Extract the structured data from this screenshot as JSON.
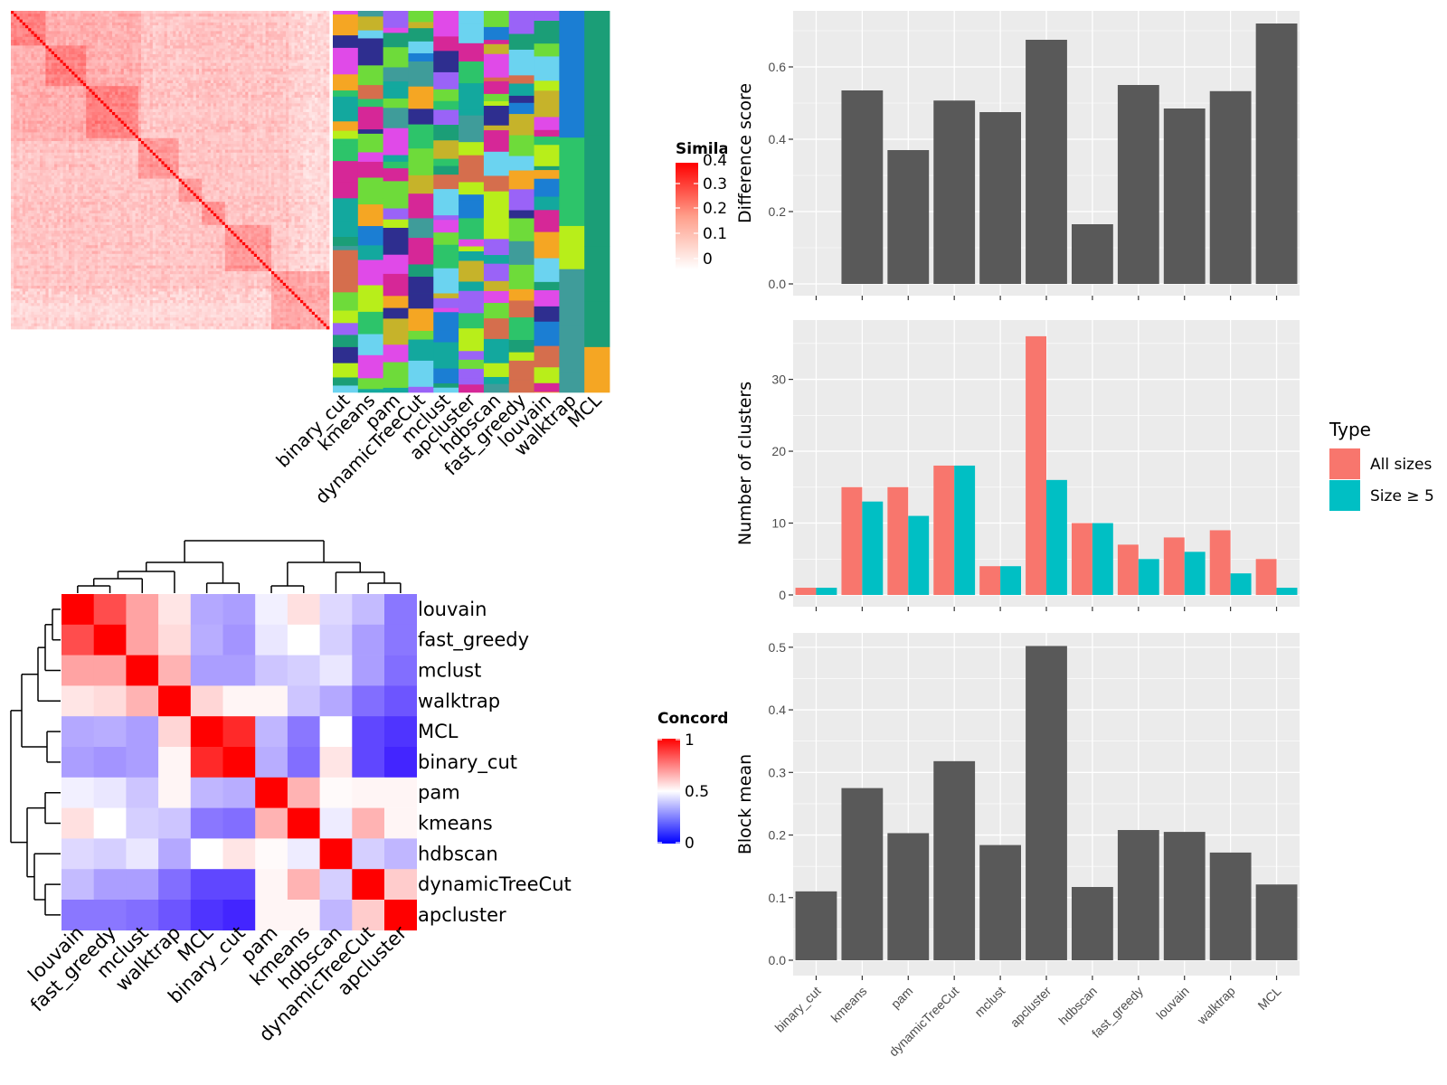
{
  "methods": [
    "binary_cut",
    "kmeans",
    "pam",
    "dynamicTreeCut",
    "mclust",
    "apcluster",
    "hdbscan",
    "fast_greedy",
    "louvain",
    "walktrap",
    "MCL"
  ],
  "colors": {
    "panel_bg": "#EBEBEB",
    "grid": "#FFFFFF",
    "bar_dark": "#595959",
    "all_sizes": "#F8766D",
    "size5": "#00BFC4",
    "heat_high": "#FF0000",
    "heat_mid": "#FFFFFF",
    "heat_low": "#0000FF"
  },
  "similarity_legend": {
    "title": "Similarity",
    "ticks": [
      "0.4",
      "0.3",
      "0.2",
      "0.1",
      "0"
    ]
  },
  "concordance_legend": {
    "title": "Concordance",
    "ticks": [
      "1",
      "0.5",
      "0"
    ]
  },
  "type_legend": {
    "title": "Type",
    "entries": [
      "All sizes",
      "Size ≥ 5"
    ]
  },
  "concordance_order": [
    "louvain",
    "fast_greedy",
    "mclust",
    "walktrap",
    "MCL",
    "binary_cut",
    "pam",
    "kmeans",
    "hdbscan",
    "dynamicTreeCut",
    "apcluster"
  ],
  "concordance_matrix": [
    [
      1.0,
      0.85,
      0.68,
      0.55,
      0.32,
      0.3,
      0.47,
      0.56,
      0.42,
      0.36,
      0.22
    ],
    [
      0.85,
      1.0,
      0.68,
      0.57,
      0.33,
      0.28,
      0.45,
      0.5,
      0.4,
      0.3,
      0.22
    ],
    [
      0.68,
      0.68,
      1.0,
      0.65,
      0.3,
      0.3,
      0.38,
      0.4,
      0.45,
      0.3,
      0.2
    ],
    [
      0.55,
      0.57,
      0.65,
      1.0,
      0.58,
      0.52,
      0.52,
      0.38,
      0.32,
      0.2,
      0.15
    ],
    [
      0.32,
      0.33,
      0.3,
      0.58,
      1.0,
      0.92,
      0.35,
      0.22,
      0.5,
      0.12,
      0.08
    ],
    [
      0.3,
      0.28,
      0.3,
      0.52,
      0.92,
      1.0,
      0.33,
      0.2,
      0.55,
      0.12,
      0.05
    ],
    [
      0.47,
      0.45,
      0.38,
      0.52,
      0.35,
      0.33,
      1.0,
      0.65,
      0.51,
      0.52,
      0.52
    ],
    [
      0.56,
      0.5,
      0.4,
      0.38,
      0.22,
      0.2,
      0.65,
      1.0,
      0.46,
      0.65,
      0.52
    ],
    [
      0.42,
      0.4,
      0.45,
      0.32,
      0.5,
      0.55,
      0.51,
      0.46,
      1.0,
      0.4,
      0.35
    ],
    [
      0.36,
      0.3,
      0.3,
      0.2,
      0.12,
      0.12,
      0.52,
      0.65,
      0.4,
      1.0,
      0.6
    ],
    [
      0.22,
      0.22,
      0.2,
      0.15,
      0.08,
      0.05,
      0.52,
      0.52,
      0.35,
      0.6,
      1.0
    ]
  ],
  "chart_data": [
    {
      "type": "bar",
      "categories": [
        "binary_cut",
        "kmeans",
        "pam",
        "dynamicTreeCut",
        "mclust",
        "apcluster",
        "hdbscan",
        "fast_greedy",
        "louvain",
        "walktrap",
        "MCL"
      ],
      "values": [
        0,
        0.535,
        0.37,
        0.507,
        0.475,
        0.675,
        0.165,
        0.55,
        0.485,
        0.533,
        0.72
      ],
      "ylabel": "Difference score",
      "ylim": [
        0,
        0.75
      ],
      "yticks": [
        "0.0",
        "0.2",
        "0.4",
        "0.6"
      ],
      "grid": true
    },
    {
      "type": "bar",
      "categories": [
        "binary_cut",
        "kmeans",
        "pam",
        "dynamicTreeCut",
        "mclust",
        "apcluster",
        "hdbscan",
        "fast_greedy",
        "louvain",
        "walktrap",
        "MCL"
      ],
      "series": [
        {
          "name": "All sizes",
          "values": [
            1,
            15,
            15,
            18,
            4,
            36,
            10,
            7,
            8,
            9,
            5
          ]
        },
        {
          "name": "Size ≥ 5",
          "values": [
            1,
            13,
            11,
            18,
            4,
            16,
            10,
            5,
            6,
            3,
            1
          ]
        }
      ],
      "ylabel": "Number of clusters",
      "ylim": [
        0,
        38
      ],
      "yticks": [
        "0",
        "10",
        "20",
        "30"
      ],
      "legend_title": "Type",
      "legend": "right",
      "grid": true
    },
    {
      "type": "bar",
      "categories": [
        "binary_cut",
        "kmeans",
        "pam",
        "dynamicTreeCut",
        "mclust",
        "apcluster",
        "hdbscan",
        "fast_greedy",
        "louvain",
        "walktrap",
        "MCL"
      ],
      "values": [
        0.11,
        0.275,
        0.203,
        0.318,
        0.184,
        0.502,
        0.117,
        0.208,
        0.205,
        0.172,
        0.121
      ],
      "ylabel": "Block mean",
      "ylim": [
        0,
        0.52
      ],
      "yticks": [
        "0.0",
        "0.1",
        "0.2",
        "0.3",
        "0.4",
        "0.5"
      ],
      "grid": true
    }
  ]
}
